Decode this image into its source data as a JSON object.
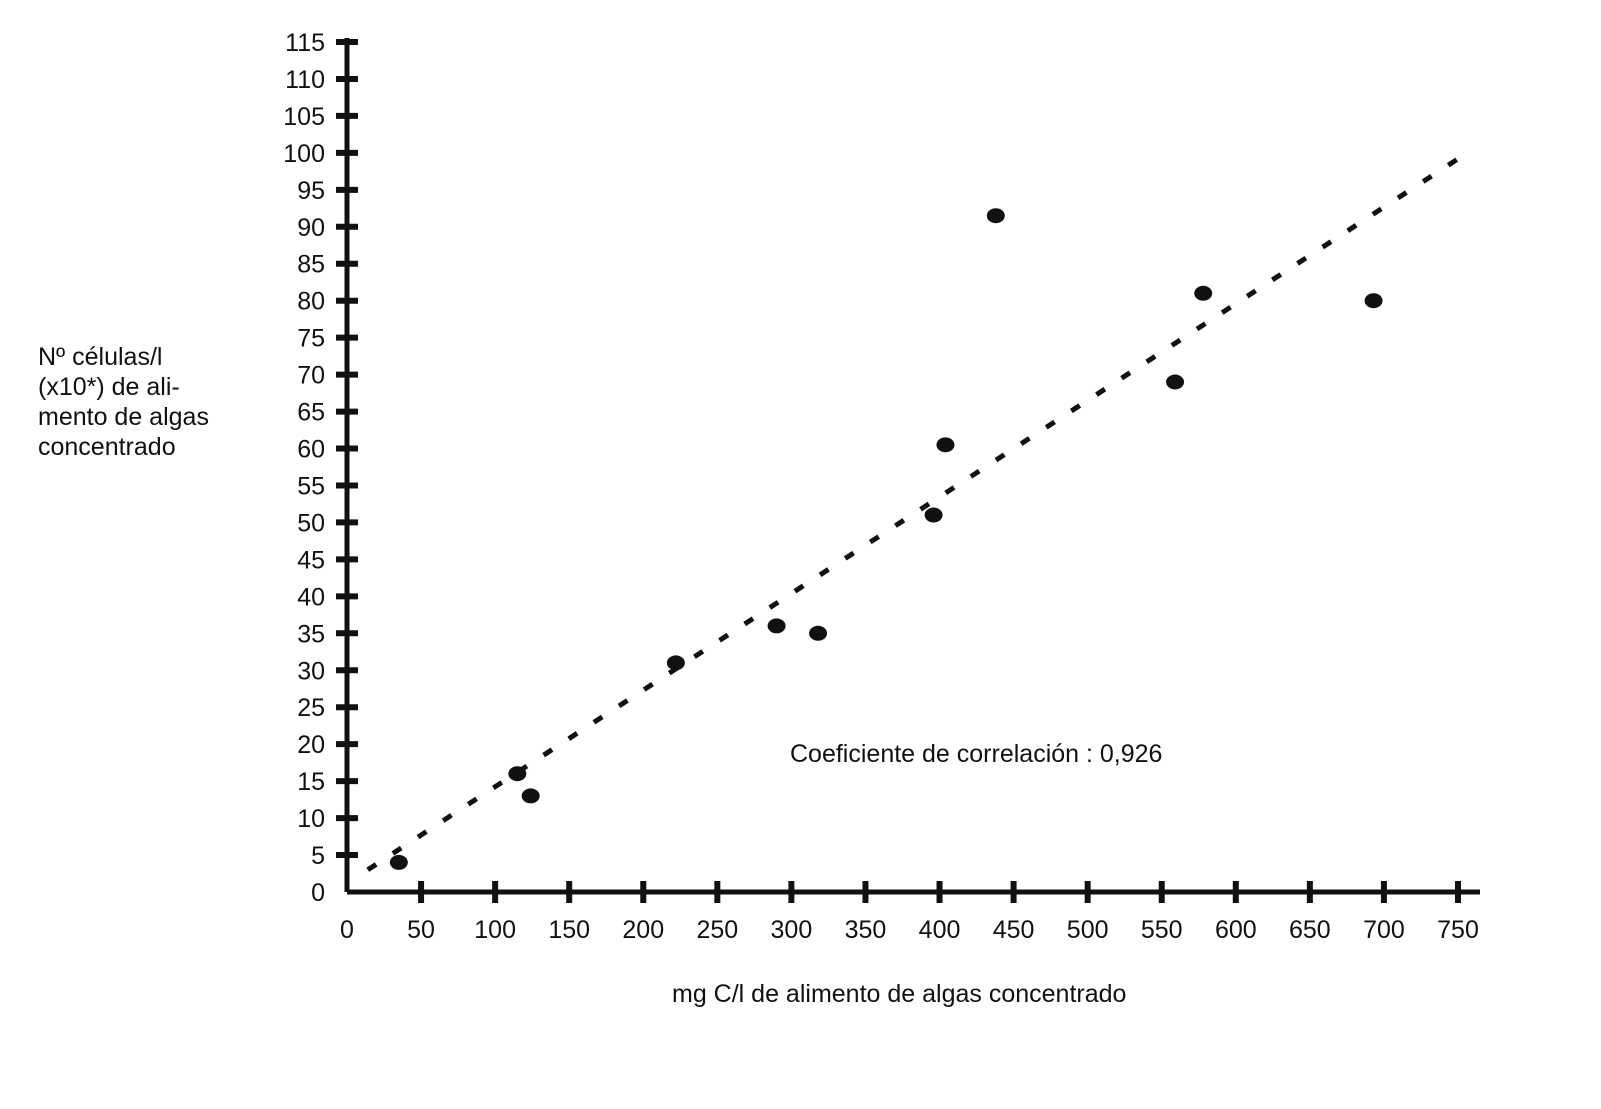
{
  "chart_data": {
    "type": "scatter",
    "xlabel": "mg C/l de alimento de algas concentrado",
    "ylabel_lines": [
      "Nº células/l",
      "(x10*) de ali-",
      "mento de algas",
      "concentrado"
    ],
    "annotation": "Coeficiente de correlación : 0,926",
    "xlim": [
      0,
      750
    ],
    "ylim": [
      0,
      115
    ],
    "x_ticks": [
      0,
      50,
      100,
      150,
      200,
      250,
      300,
      350,
      400,
      450,
      500,
      550,
      600,
      650,
      700,
      750
    ],
    "y_ticks": [
      0,
      5,
      10,
      15,
      20,
      25,
      30,
      35,
      40,
      45,
      50,
      55,
      60,
      65,
      70,
      75,
      80,
      85,
      90,
      95,
      100,
      105,
      110,
      115
    ],
    "grid": false,
    "legend": "none",
    "colors": {
      "points": "#111111",
      "axes": "#111111",
      "trend": "#111111"
    },
    "points": [
      {
        "x": 35,
        "y": 4
      },
      {
        "x": 115,
        "y": 16
      },
      {
        "x": 124,
        "y": 13
      },
      {
        "x": 222,
        "y": 31
      },
      {
        "x": 290,
        "y": 36
      },
      {
        "x": 318,
        "y": 35
      },
      {
        "x": 396,
        "y": 51
      },
      {
        "x": 404,
        "y": 60.5
      },
      {
        "x": 438,
        "y": 91.5
      },
      {
        "x": 559,
        "y": 69
      },
      {
        "x": 578,
        "y": 81
      },
      {
        "x": 693,
        "y": 80
      }
    ],
    "trendline": {
      "x": [
        14,
        760
      ],
      "y": [
        3,
        100.5
      ]
    }
  }
}
